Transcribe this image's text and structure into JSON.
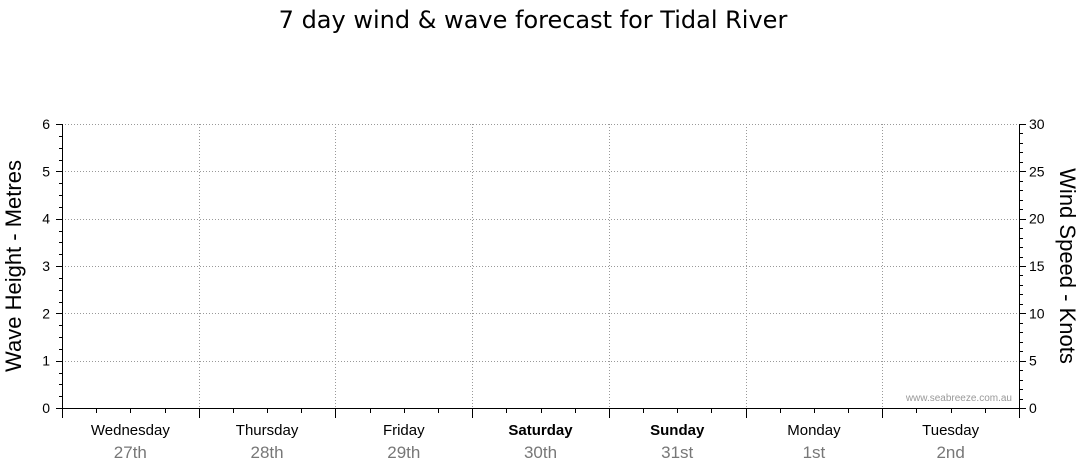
{
  "chart_data": {
    "type": "line",
    "title": "7 day wind & wave forecast for Tidal River",
    "ylabel_left": "Wave Height - Metres",
    "ylabel_right": "Wind Speed - Knots",
    "ylim_left": [
      0,
      6
    ],
    "ylim_right": [
      0,
      30
    ],
    "left_ticks": [
      0,
      1,
      2,
      3,
      4,
      5,
      6
    ],
    "right_ticks": [
      0,
      5,
      10,
      15,
      20,
      25,
      30
    ],
    "grid": true,
    "days": [
      {
        "name": "Wednesday",
        "date": "27th",
        "bold": false
      },
      {
        "name": "Thursday",
        "date": "28th",
        "bold": false
      },
      {
        "name": "Friday",
        "date": "29th",
        "bold": false
      },
      {
        "name": "Saturday",
        "date": "30th",
        "bold": true
      },
      {
        "name": "Sunday",
        "date": "31st",
        "bold": true
      },
      {
        "name": "Monday",
        "date": "1st",
        "bold": false
      },
      {
        "name": "Tuesday",
        "date": "2nd",
        "bold": false
      }
    ],
    "series": []
  },
  "watermark": "www.seabreeze.com.au",
  "colors": {
    "axis": "#000000",
    "grid": "#999999",
    "date_text": "#777777"
  }
}
